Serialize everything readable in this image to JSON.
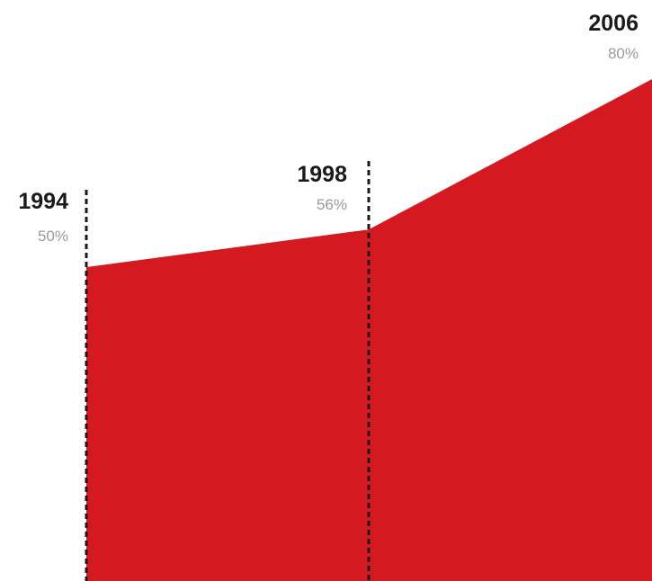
{
  "chart_data": {
    "type": "area",
    "title": "",
    "xlabel": "",
    "ylabel": "",
    "points": [
      {
        "year": "1994",
        "value": 50,
        "label": "50%"
      },
      {
        "year": "1998",
        "value": 56,
        "label": "56%"
      },
      {
        "year": "2006",
        "value": 80,
        "label": "80%"
      }
    ],
    "x_unit": "year",
    "y_unit": "percent",
    "ylim": [
      0,
      100
    ],
    "grid": false,
    "legend": "none",
    "colors": {
      "area": "#d51920",
      "marker_line": "#1a1a1a",
      "year_text": "#1a1a1a",
      "value_text": "#9a9a9a"
    }
  }
}
